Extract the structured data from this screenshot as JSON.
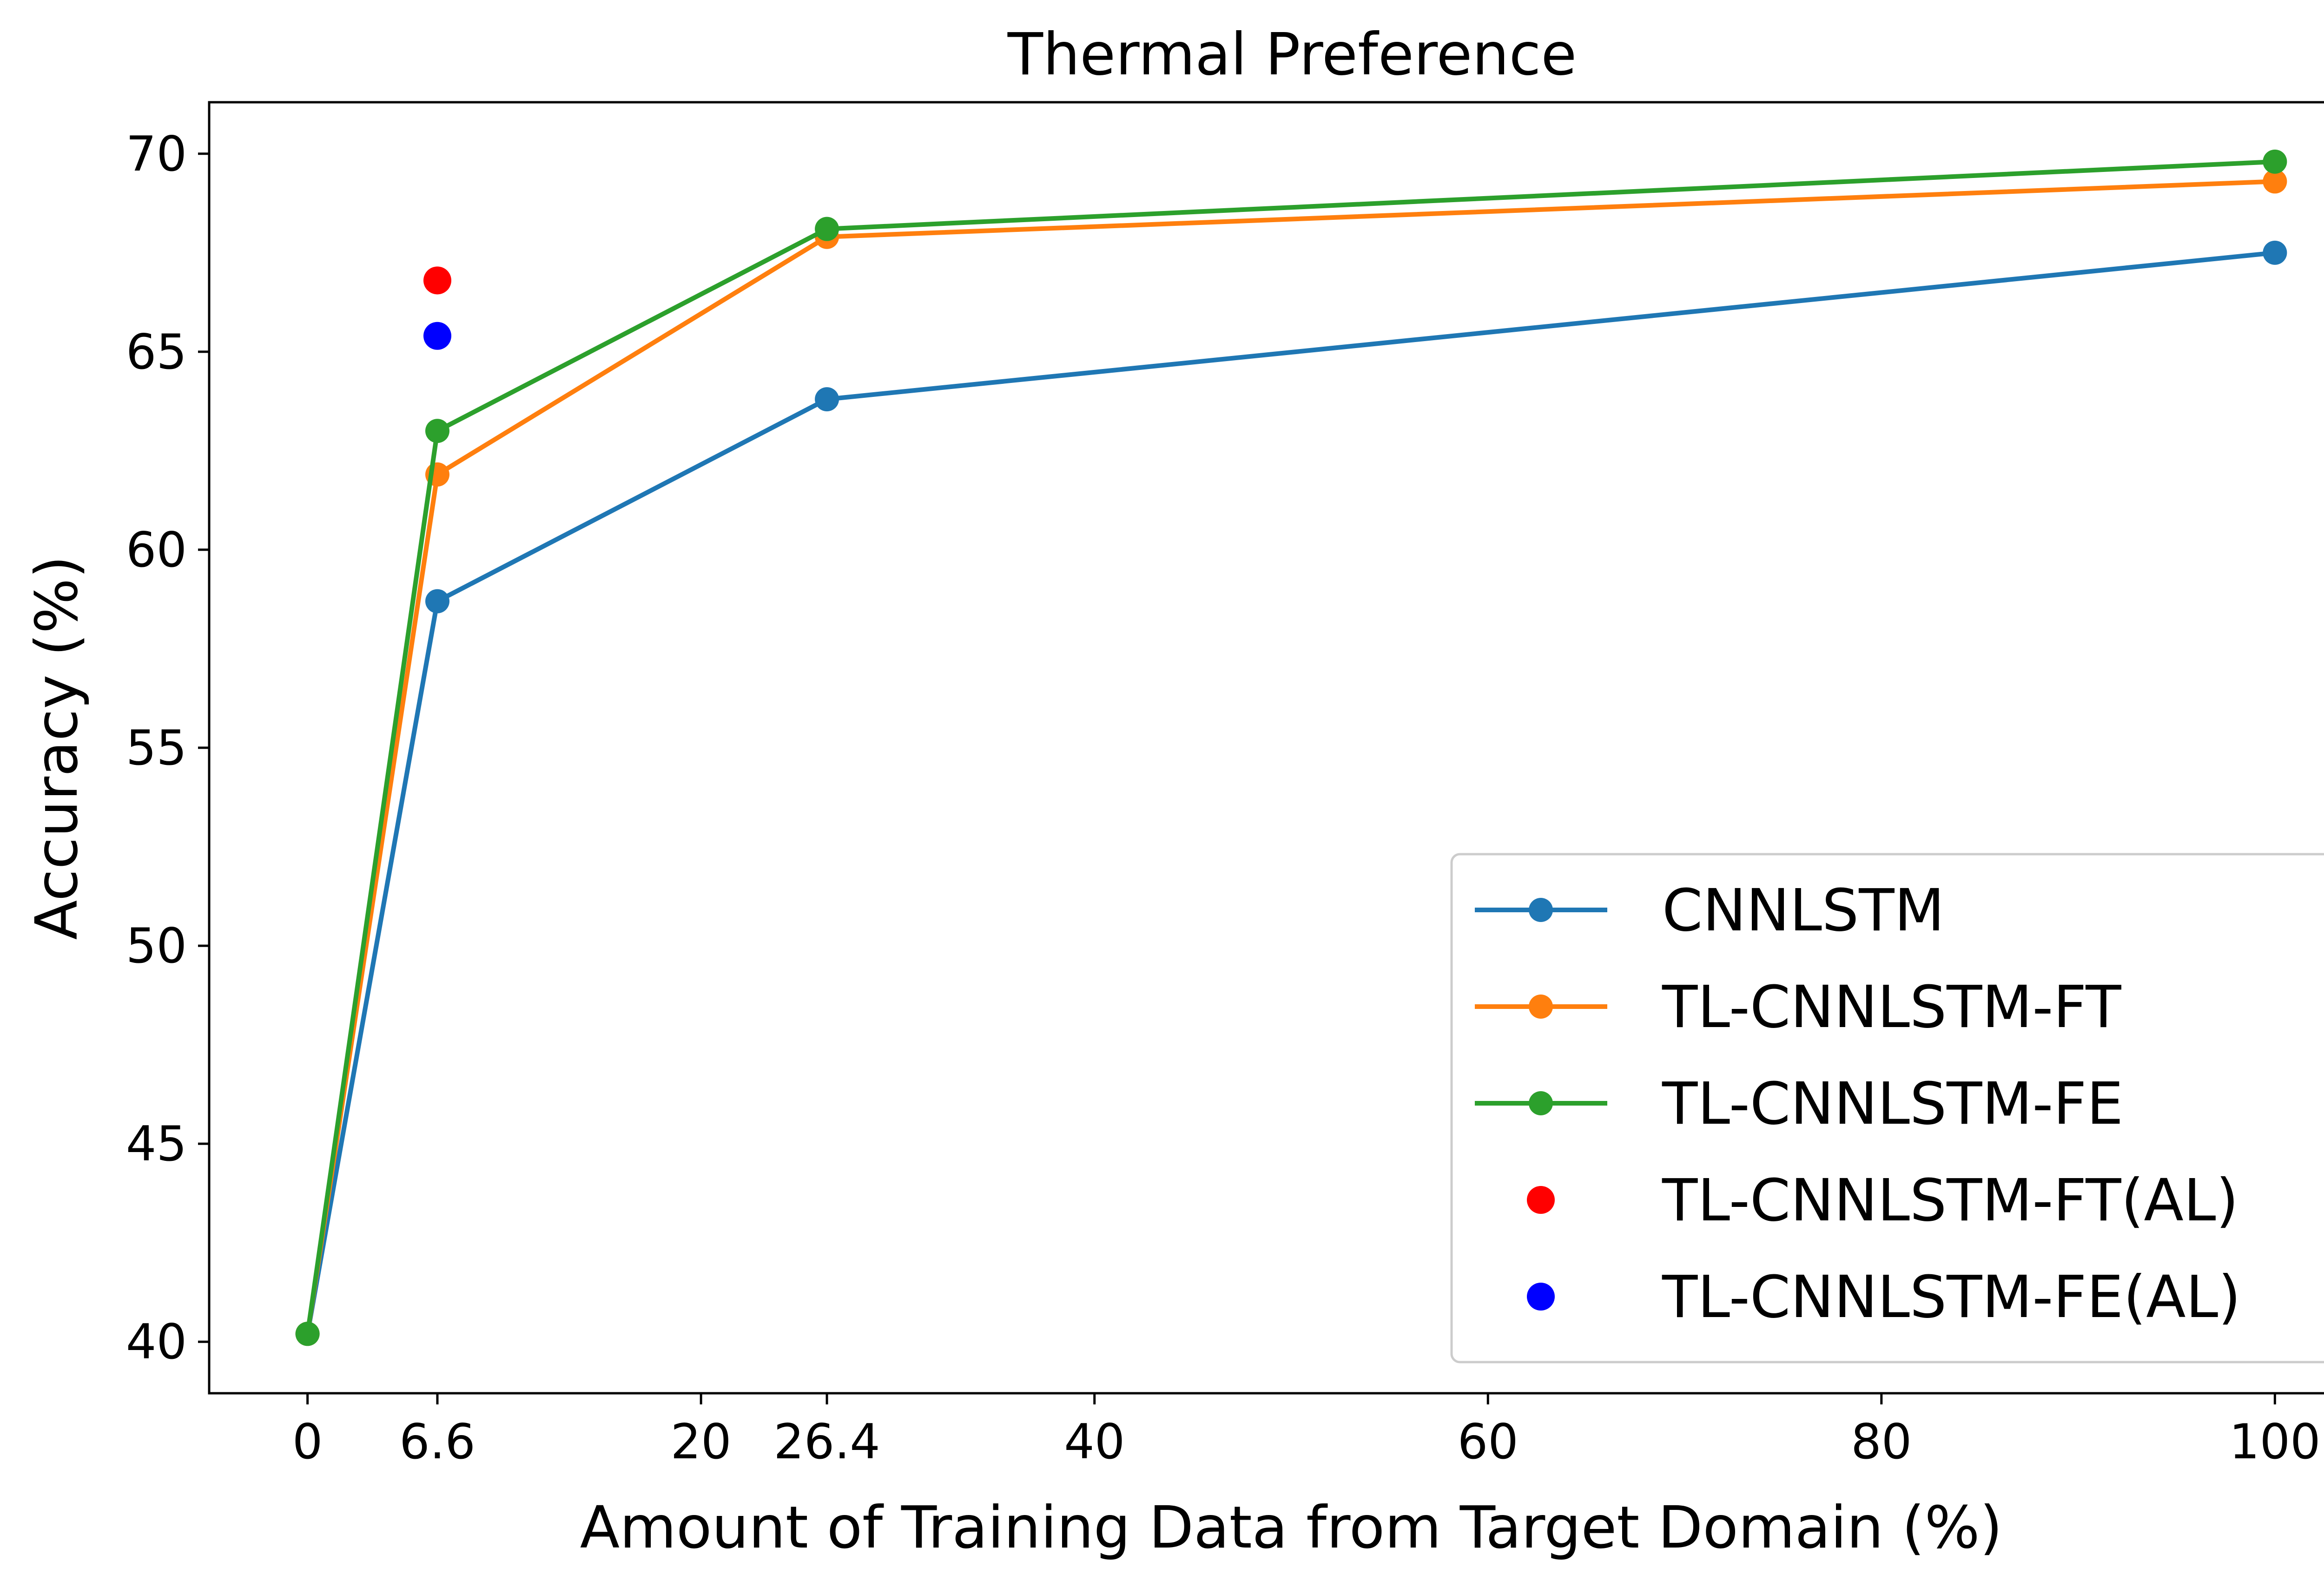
{
  "chart_data": {
    "type": "line",
    "title": "Thermal Preference",
    "xlabel": "Amount of Training Data from Target Domain (%)",
    "ylabel": "Accuracy (%)",
    "xlim": [
      -5,
      105
    ],
    "ylim": [
      38.7,
      71.3
    ],
    "xticks": [
      0,
      6.6,
      20,
      26.4,
      40,
      60,
      80,
      100
    ],
    "xtick_labels": [
      "0",
      "6.6",
      "20",
      "26.4",
      "40",
      "60",
      "80",
      "100"
    ],
    "yticks": [
      40,
      45,
      50,
      55,
      60,
      65,
      70
    ],
    "ytick_labels": [
      "40",
      "45",
      "50",
      "55",
      "60",
      "65",
      "70"
    ],
    "grid": false,
    "legend_position": "bottom-right",
    "series": [
      {
        "name": "CNNLSTM",
        "kind": "line",
        "color": "#1f77b4",
        "x": [
          0,
          6.6,
          26.4,
          100
        ],
        "y": [
          40.2,
          58.7,
          63.8,
          67.5
        ]
      },
      {
        "name": "TL-CNNLSTM-FT",
        "kind": "line",
        "color": "#ff7f0e",
        "x": [
          0,
          6.6,
          26.4,
          100
        ],
        "y": [
          40.2,
          61.9,
          67.9,
          69.3
        ]
      },
      {
        "name": "TL-CNNLSTM-FE",
        "kind": "line",
        "color": "#2ca02c",
        "x": [
          0,
          6.6,
          26.4,
          100
        ],
        "y": [
          40.2,
          63.0,
          68.1,
          69.8
        ]
      },
      {
        "name": "TL-CNNLSTM-FT(AL)",
        "kind": "scatter",
        "color": "#ff0000",
        "x": [
          6.6
        ],
        "y": [
          66.8
        ]
      },
      {
        "name": "TL-CNNLSTM-FE(AL)",
        "kind": "scatter",
        "color": "#0000ff",
        "x": [
          6.6
        ],
        "y": [
          65.4
        ]
      }
    ]
  }
}
